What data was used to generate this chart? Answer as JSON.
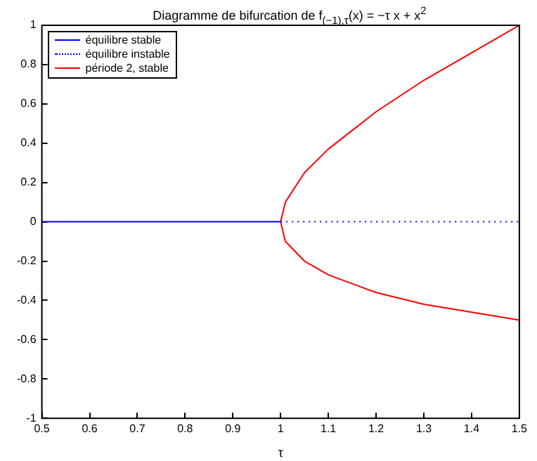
{
  "chart_data": {
    "type": "line",
    "title": "Diagramme de bifurcation de f$_{(−1),τ}$(x) = −τ x + x$^{2}$",
    "xlabel": "τ",
    "xlim": [
      0.5,
      1.5
    ],
    "xticks": [
      0.5,
      0.6,
      0.7,
      0.8,
      0.9,
      1,
      1.1,
      1.2,
      1.3,
      1.4,
      1.5
    ],
    "ylim": [
      -1,
      1
    ],
    "yticks": [
      -1,
      -0.8,
      -0.6,
      -0.4,
      -0.2,
      0,
      0.2,
      0.4,
      0.6,
      0.8,
      1
    ],
    "grid": false,
    "legend": "top left",
    "marker": "none",
    "series": [
      {
        "name": "équilibre stable",
        "color": "#0000ff",
        "line_style": "solid",
        "x": [
          0.5,
          1
        ],
        "values": [
          0,
          0
        ]
      },
      {
        "name": "équilibre instable",
        "color": "#0000ff",
        "line_style": "dotted",
        "x": [
          1,
          1.5
        ],
        "values": [
          0,
          0
        ]
      },
      {
        "name": "période 2, stable",
        "color": "#ff0000",
        "line_style": "solid",
        "x": [
          1.5,
          1.4,
          1.3,
          1.2,
          1.1,
          1.05,
          1.01,
          1,
          1.01,
          1.05,
          1.1,
          1.2,
          1.3,
          1.4,
          1.5
        ],
        "values": [
          -0.5,
          -0.46,
          -0.42,
          -0.36,
          -0.27,
          -0.2,
          -0.1,
          0,
          0.1,
          0.25,
          0.37,
          0.56,
          0.72,
          0.86,
          1
        ]
      }
    ]
  }
}
